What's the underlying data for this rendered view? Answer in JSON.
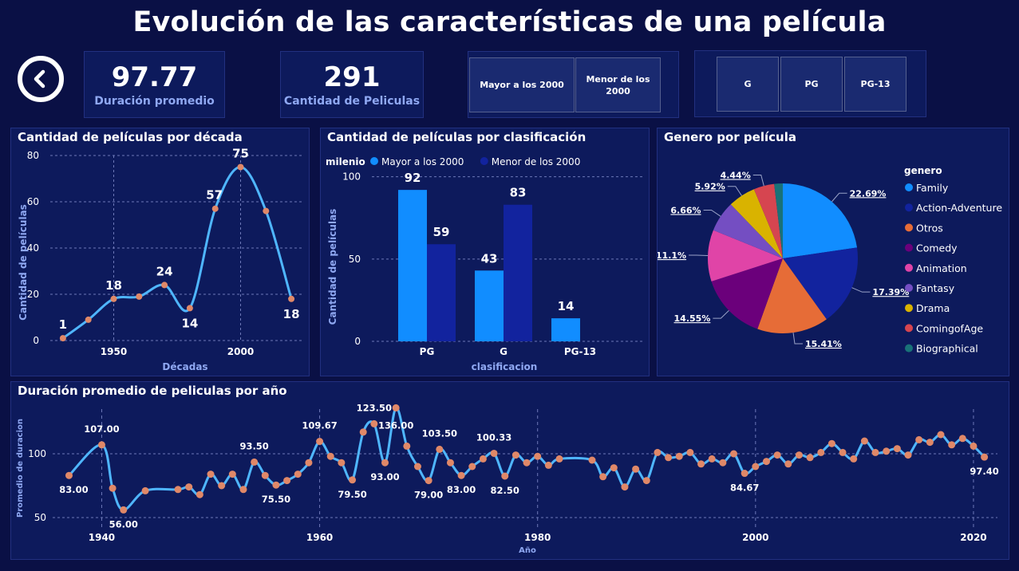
{
  "header": {
    "title": "Evolución de las características de una película"
  },
  "kpis": [
    {
      "value": "97.77",
      "label": "Duración promedio"
    },
    {
      "value": "291",
      "label": "Cantidad de Peliculas"
    }
  ],
  "slicer_milenio": [
    "Mayor a los 2000",
    "Menor de los 2000"
  ],
  "slicer_rating": [
    "G",
    "PG",
    "PG-13"
  ],
  "colors": {
    "bg": "#0a1045",
    "panel": "#0d1a5c",
    "line": "#4fb6ff",
    "marker": "#e08868",
    "bar_light": "#118dff",
    "bar_dark": "#12239e"
  },
  "chart_data": [
    {
      "id": "decade",
      "type": "line",
      "title": "Cantidad de películas por década",
      "xlabel": "Décadas",
      "ylabel": "Cantidad de películas",
      "x": [
        1930,
        1940,
        1950,
        1960,
        1970,
        1980,
        1990,
        2000,
        2010,
        2020
      ],
      "values": [
        1,
        9,
        18,
        19,
        24,
        14,
        57,
        75,
        56,
        18
      ],
      "data_labels": [
        "1",
        "",
        "18",
        "",
        "24",
        "14",
        "57",
        "75",
        "",
        "18"
      ],
      "xticks": [
        "1950",
        "2000"
      ],
      "xtick_values": [
        1950,
        2000
      ],
      "yticks": [
        "0",
        "20",
        "40",
        "60",
        "80"
      ],
      "ylim": [
        0,
        80
      ],
      "grid": true
    },
    {
      "id": "clasif",
      "type": "bar",
      "title": "Cantidad de películas por clasificación",
      "legend_title": "milenio",
      "xlabel": "clasificacion",
      "ylabel": "Cantidad de películas",
      "categories": [
        "PG",
        "G",
        "PG-13"
      ],
      "series": [
        {
          "name": "Mayor a los 2000",
          "values": [
            92,
            43,
            14
          ],
          "color": "#118dff"
        },
        {
          "name": "Menor de los 2000",
          "values": [
            59,
            83,
            null
          ],
          "color": "#12239e"
        }
      ],
      "data_labels": [
        [
          "92",
          "43",
          "14"
        ],
        [
          "59",
          "83",
          ""
        ]
      ],
      "yticks": [
        "0",
        "50",
        "100"
      ],
      "ylim": [
        0,
        110
      ]
    },
    {
      "id": "genero",
      "type": "pie",
      "title": "Genero por película",
      "legend_title": "genero",
      "slices": [
        {
          "name": "Family",
          "value": 22.69,
          "label": "22.69%",
          "color": "#118dff"
        },
        {
          "name": "Action-Adventure",
          "value": 17.39,
          "label": "17.39%",
          "color": "#12239e"
        },
        {
          "name": "Otros",
          "value": 15.41,
          "label": "15.41%",
          "color": "#e66c37"
        },
        {
          "name": "Comedy",
          "value": 14.55,
          "label": "14.55%",
          "color": "#6b007b"
        },
        {
          "name": "Animation",
          "value": 11.1,
          "label": "11.1%",
          "color": "#e044a7"
        },
        {
          "name": "Fantasy",
          "value": 6.66,
          "label": "6.66%",
          "color": "#744ec2"
        },
        {
          "name": "Drama",
          "value": 5.92,
          "label": "5.92%",
          "color": "#d9b300"
        },
        {
          "name": "ComingofAge",
          "value": 4.44,
          "label": "4.44%",
          "color": "#d64550"
        },
        {
          "name": "Biographical",
          "value": 1.84,
          "label": "",
          "color": "#197278"
        }
      ]
    },
    {
      "id": "anio",
      "type": "line",
      "title": "Duración promedio de peliculas por año",
      "xlabel": "Año",
      "ylabel": "Promedio de duracion",
      "xticks": [
        "1940",
        "1960",
        "1980",
        "2000",
        "2020"
      ],
      "xtick_values": [
        1940,
        1960,
        1980,
        2000,
        2020
      ],
      "yticks": [
        "50",
        "100"
      ],
      "ytick_values": [
        50,
        100
      ],
      "ylim": [
        45,
        140
      ],
      "x": [
        1937,
        1940,
        1941,
        1942,
        1944,
        1947,
        1948,
        1949,
        1950,
        1951,
        1952,
        1953,
        1954,
        1955,
        1956,
        1957,
        1958,
        1959,
        1960,
        1961,
        1962,
        1963,
        1964,
        1965,
        1966,
        1967,
        1968,
        1969,
        1970,
        1971,
        1972,
        1973,
        1974,
        1975,
        1976,
        1977,
        1978,
        1979,
        1980,
        1981,
        1982,
        1985,
        1986,
        1987,
        1988,
        1989,
        1990,
        1991,
        1992,
        1993,
        1994,
        1995,
        1996,
        1997,
        1998,
        1999,
        2000,
        2001,
        2002,
        2003,
        2004,
        2005,
        2006,
        2007,
        2008,
        2009,
        2010,
        2011,
        2012,
        2013,
        2014,
        2015,
        2016,
        2017,
        2018,
        2019,
        2020,
        2021
      ],
      "values": [
        83,
        107,
        73,
        56,
        71,
        72,
        74,
        68,
        84,
        75,
        84,
        72,
        93.5,
        83,
        75.5,
        79,
        84,
        93,
        109.67,
        98,
        93,
        79.5,
        117,
        123.5,
        93,
        136,
        106,
        90,
        79,
        103.5,
        93,
        83,
        90,
        96,
        100.33,
        82.5,
        99,
        93,
        98,
        91,
        96,
        95,
        82,
        89,
        74,
        88,
        79,
        101,
        97,
        98,
        101,
        92,
        96,
        93,
        100,
        84.67,
        90,
        94,
        99,
        92,
        99,
        97,
        101,
        108,
        101,
        96,
        110,
        101,
        102,
        104,
        99,
        111,
        109,
        115,
        107,
        112,
        106,
        97.4
      ],
      "data_labels": {
        "1937": "83.00",
        "1940": "107.00",
        "1942": "56.00",
        "1954": "93.50",
        "1956": "75.50",
        "1960": "109.67",
        "1963": "79.50",
        "1965": "123.50",
        "1966": "93.00",
        "1967": "136.00",
        "1970": "79.00",
        "1971": "103.50",
        "1973": "83.00",
        "1976": "100.33",
        "1977": "82.50",
        "1999": "84.67",
        "2021": "97.40"
      },
      "grid": true
    }
  ]
}
